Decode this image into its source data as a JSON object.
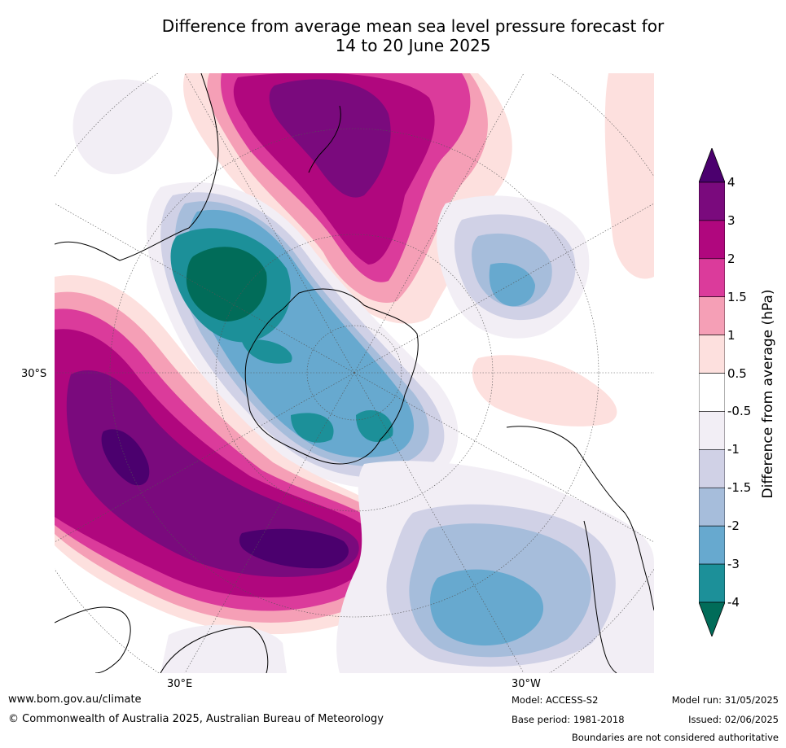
{
  "title_line1": "Difference from average mean sea level pressure forecast for",
  "title_line2": "14 to 20 June 2025",
  "labels": {
    "lat_30s": "30°S",
    "lon_30e": "30°E",
    "lon_30w": "30°W"
  },
  "colorbar": {
    "title": "Difference from average (hPa)",
    "ticks": [
      "4",
      "3",
      "2",
      "1.5",
      "1",
      "0.5",
      "-0.5",
      "-1",
      "-1.5",
      "-2",
      "-3",
      "-4"
    ],
    "colors": [
      "#4b006e",
      "#7a0a7d",
      "#b0077e",
      "#db3b9b",
      "#f59fb6",
      "#fde0de",
      "#ffffff",
      "#f2eef5",
      "#d0d1e6",
      "#a6bddb",
      "#67a9cf",
      "#1c9099",
      "#016c59"
    ]
  },
  "footer": {
    "url": "www.bom.gov.au/climate",
    "copyright": "© Commonwealth of Australia 2025, Australian Bureau of Meteorology",
    "model": "Model: ACCESS-S2",
    "base_period": "Base period: 1981-2018",
    "model_run": "Model run: 31/05/2025",
    "issued": "Issued: 02/06/2025",
    "disclaimer": "Boundaries are not considered authoritative"
  }
}
